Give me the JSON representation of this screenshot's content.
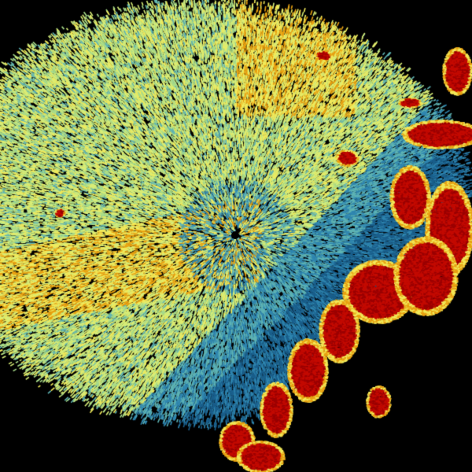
{
  "image": {
    "kind": "weather radar reflectivity scan",
    "background_color": "#000000",
    "palette": {
      "deep_blue": "#1a5f8c",
      "blue": "#2f86b0",
      "teal": "#5fb4b4",
      "light_green": "#a8dc8a",
      "yellow_green": "#d8ee78",
      "yellow": "#f2ea5a",
      "orange": "#e8a010",
      "red": "#c40a00",
      "dark_red": "#9a0000"
    },
    "features": [
      {
        "name": "stratiform-echo-region",
        "colors": [
          "light_green",
          "yellow_green",
          "yellow"
        ]
      },
      {
        "name": "low-reflectivity-band",
        "colors": [
          "teal",
          "blue",
          "deep_blue"
        ]
      },
      {
        "name": "convective-storm-line",
        "colors": [
          "red",
          "dark_red",
          "orange"
        ]
      }
    ]
  }
}
